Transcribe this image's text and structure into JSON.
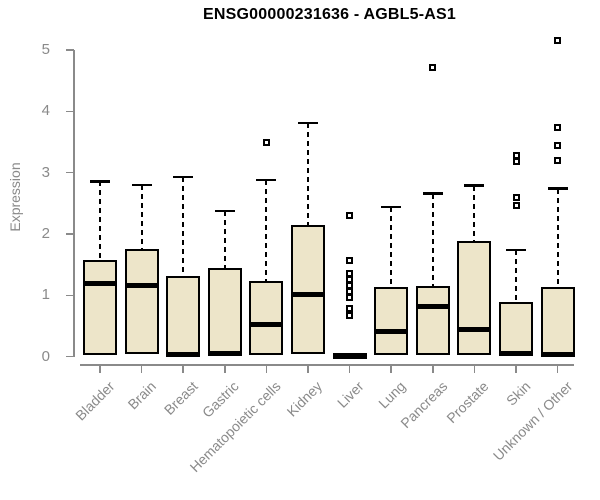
{
  "chart_data": {
    "type": "boxplot",
    "title": "ENSG00000231636 - AGBL5-AS1",
    "xlabel": "",
    "ylabel": "Expression",
    "ylim": [
      0,
      5
    ],
    "yticks": [
      0,
      1,
      2,
      3,
      4,
      5
    ],
    "grid": false,
    "legend": "none",
    "categories": [
      "Bladder",
      "Brain",
      "Breast",
      "Gastric",
      "Hematopoietic cells",
      "Kidney",
      "Liver",
      "Lung",
      "Pancreas",
      "Prostate",
      "Skin",
      "Unknown / Other"
    ],
    "boxes": [
      {
        "label": "Bladder",
        "whisker_low": 0.02,
        "q1": 0.02,
        "median": 1.2,
        "q3": 1.57,
        "whisker_high": 2.86,
        "outliers": []
      },
      {
        "label": "Brain",
        "whisker_low": 0.04,
        "q1": 0.04,
        "median": 1.16,
        "q3": 1.76,
        "whisker_high": 2.8,
        "outliers": []
      },
      {
        "label": "Breast",
        "whisker_low": 0.02,
        "q1": 0.02,
        "median": 0.04,
        "q3": 1.31,
        "whisker_high": 2.93,
        "outliers": []
      },
      {
        "label": "Gastric",
        "whisker_low": 0.02,
        "q1": 0.02,
        "median": 0.05,
        "q3": 1.44,
        "whisker_high": 2.38,
        "outliers": []
      },
      {
        "label": "Hematopoietic cells",
        "whisker_low": 0.03,
        "q1": 0.03,
        "median": 0.53,
        "q3": 1.23,
        "whisker_high": 2.88,
        "outliers": [
          3.5
        ]
      },
      {
        "label": "Kidney",
        "whisker_low": 0.05,
        "q1": 0.05,
        "median": 1.01,
        "q3": 2.15,
        "whisker_high": 3.81,
        "outliers": []
      },
      {
        "label": "Liver",
        "whisker_low": 0.01,
        "q1": 0.01,
        "median": 0.02,
        "q3": 0.03,
        "whisker_high": 0.03,
        "outliers": [
          2.3,
          1.57,
          1.36,
          1.26,
          1.16,
          1.06,
          0.97,
          0.78,
          0.68
        ]
      },
      {
        "label": "Lung",
        "whisker_low": 0.02,
        "q1": 0.02,
        "median": 0.41,
        "q3": 1.13,
        "whisker_high": 2.44,
        "outliers": []
      },
      {
        "label": "Pancreas",
        "whisker_low": 0.02,
        "q1": 0.02,
        "median": 0.82,
        "q3": 1.15,
        "whisker_high": 2.66,
        "outliers": [
          4.72
        ]
      },
      {
        "label": "Prostate",
        "whisker_low": 0.02,
        "q1": 0.02,
        "median": 0.44,
        "q3": 1.89,
        "whisker_high": 2.79,
        "outliers": []
      },
      {
        "label": "Skin",
        "whisker_low": 0.02,
        "q1": 0.02,
        "median": 0.05,
        "q3": 0.89,
        "whisker_high": 1.74,
        "outliers": [
          3.28,
          3.18,
          2.6,
          2.46
        ]
      },
      {
        "label": "Unknown / Other",
        "whisker_low": 0.02,
        "q1": 0.02,
        "median": 0.04,
        "q3": 1.14,
        "whisker_high": 2.74,
        "outliers": [
          5.15,
          3.73,
          3.45,
          3.2
        ]
      }
    ],
    "colors": {
      "box_fill": "#ede5c9",
      "box_border": "#000000",
      "median": "#000000",
      "axis": "#8a8a8a",
      "title": "#000000",
      "background": "#ffffff"
    }
  }
}
